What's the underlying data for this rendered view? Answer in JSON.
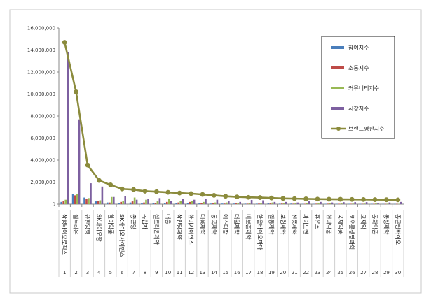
{
  "chart_data": {
    "type": "bar",
    "y_ticks": [
      "0",
      "2,000,000",
      "4,000,000",
      "6,000,000",
      "8,000,000",
      "10,000,000",
      "12,000,000",
      "14,000,000",
      "16,000,000"
    ],
    "ylim": [
      0,
      16000000
    ],
    "grid": false,
    "legend_position": "right",
    "ranks": [
      "1",
      "2",
      "3",
      "4",
      "5",
      "6",
      "7",
      "8",
      "9",
      "10",
      "11",
      "12",
      "13",
      "14",
      "15",
      "16",
      "17",
      "18",
      "19",
      "20",
      "21",
      "22",
      "23",
      "24",
      "25",
      "26",
      "27",
      "28",
      "29",
      "30"
    ],
    "categories": [
      "삼성바이오로직스",
      "셀트리온",
      "유한양행",
      "SK바이오팜",
      "한미약품",
      "SK바이오사이언스",
      "종근당",
      "녹십자",
      "셀트리온제약",
      "대웅",
      "삼진당제약",
      "한미사이언스",
      "대웅제약",
      "동국제약",
      "에스티팜",
      "대원제약",
      "비보존제약",
      "한올바이오파마",
      "일동제약",
      "보령제약",
      "신풍제약",
      "파이노엔",
      "휴온스",
      "현대약품",
      "국제약품",
      "코오롱생명과학",
      "코제약",
      "동화약품",
      "동성제약",
      "종근당바이오"
    ],
    "series": [
      {
        "name": "참여지수",
        "type": "bar",
        "color": "#4a7ebb",
        "values": [
          200000,
          950000,
          600000,
          250000,
          150000,
          100000,
          150000,
          120000,
          80000,
          100000,
          90000,
          100000,
          60000,
          50000,
          50000,
          50000,
          40000,
          40000,
          60000,
          40000,
          50000,
          30000,
          30000,
          30000,
          30000,
          30000,
          20000,
          30000,
          20000,
          20000
        ]
      },
      {
        "name": "소통지수",
        "type": "bar",
        "color": "#be4b48",
        "values": [
          300000,
          800000,
          450000,
          300000,
          150000,
          200000,
          250000,
          150000,
          100000,
          200000,
          150000,
          200000,
          100000,
          60000,
          50000,
          60000,
          40000,
          50000,
          60000,
          50000,
          40000,
          30000,
          40000,
          40000,
          30000,
          30000,
          30000,
          30000,
          20000,
          20000
        ]
      },
      {
        "name": "커뮤니티지수",
        "type": "bar",
        "color": "#98b954",
        "values": [
          400000,
          900000,
          550000,
          350000,
          650000,
          300000,
          600000,
          400000,
          250000,
          450000,
          300000,
          300000,
          200000,
          150000,
          150000,
          120000,
          100000,
          80000,
          150000,
          100000,
          100000,
          80000,
          60000,
          80000,
          60000,
          50000,
          50000,
          60000,
          40000,
          30000
        ]
      },
      {
        "name": "시장지수",
        "type": "bar",
        "color": "#7d60a0",
        "values": [
          13800000,
          7700000,
          1900000,
          1600000,
          650000,
          700000,
          400000,
          450000,
          550000,
          300000,
          450000,
          400000,
          450000,
          400000,
          300000,
          200000,
          380000,
          350000,
          200000,
          200000,
          150000,
          250000,
          200000,
          150000,
          180000,
          180000,
          180000,
          100000,
          150000,
          200000
        ]
      },
      {
        "name": "브랜드평판지수",
        "type": "line",
        "color": "#8b8b3c",
        "values": [
          14700000,
          10200000,
          3550000,
          2150000,
          1750000,
          1380000,
          1320000,
          1180000,
          1130000,
          1070000,
          1010000,
          960000,
          880000,
          800000,
          720000,
          660000,
          620000,
          600000,
          560000,
          520000,
          500000,
          480000,
          460000,
          450000,
          440000,
          430000,
          420000,
          410000,
          400000,
          390000
        ]
      }
    ]
  }
}
